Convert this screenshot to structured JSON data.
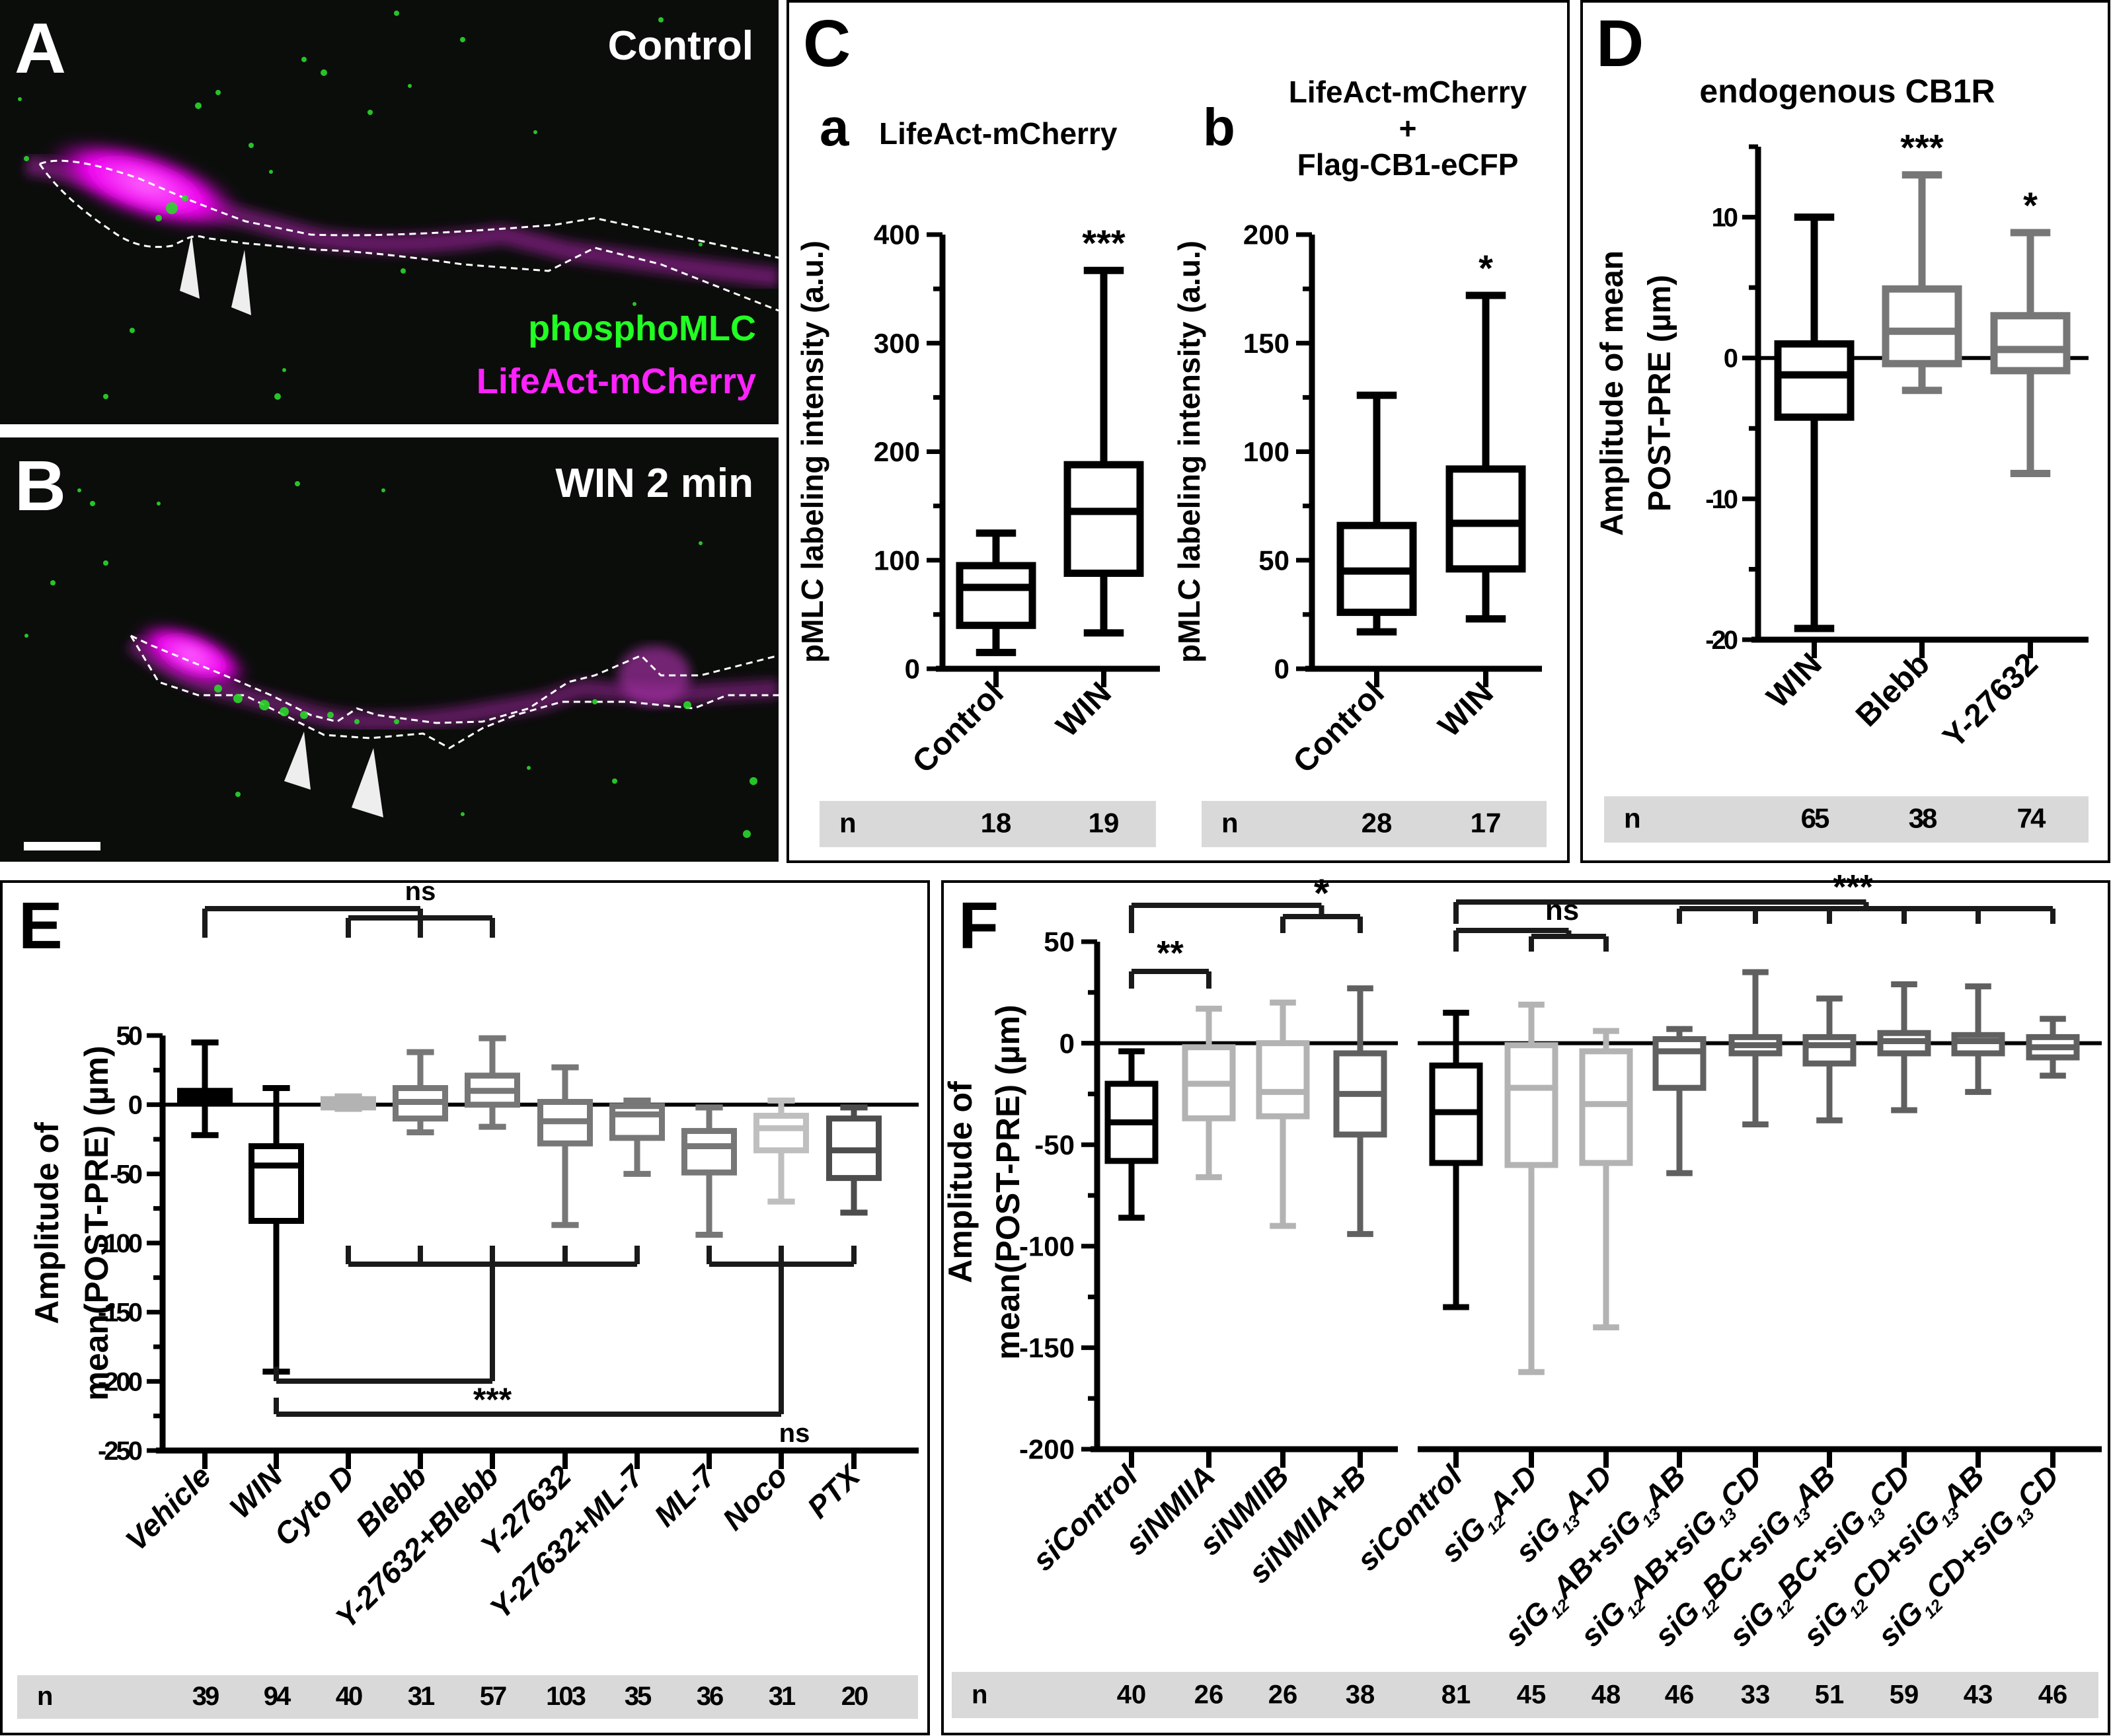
{
  "panels": {
    "A": {
      "letter": "A",
      "condition": "Control",
      "channel_green": "phosphoMLC",
      "channel_magenta": "LifeAct-mCherry"
    },
    "B": {
      "letter": "B",
      "condition": "WIN 2 min"
    },
    "C": {
      "letter": "C",
      "sub_a": "a",
      "sub_b": "b"
    },
    "D": {
      "letter": "D"
    },
    "E": {
      "letter": "E"
    },
    "F": {
      "letter": "F"
    }
  },
  "colors": {
    "green": "#22ff22",
    "magenta": "#ff22ff",
    "black": "#000000",
    "gray_mid": "#777777",
    "gray_light": "#bbbbbb",
    "gray_dark": "#555555",
    "n_band": "#d9d9d9"
  },
  "chart_data": [
    {
      "id": "Ca",
      "type": "box",
      "title": "LifeAct-mCherry",
      "ylabel": "pMLC labeling intensity (a.u.)",
      "ylim": [
        0,
        400
      ],
      "yticks": [
        0,
        100,
        200,
        300,
        400
      ],
      "categories": [
        "Control",
        "WIN"
      ],
      "series": [
        {
          "name": "Control",
          "min": 15,
          "q1": 40,
          "median": 75,
          "q3": 95,
          "max": 125,
          "color": "#000000",
          "n": 18,
          "sig": ""
        },
        {
          "name": "WIN",
          "min": 33,
          "q1": 88,
          "median": 145,
          "q3": 188,
          "max": 367,
          "color": "#000000",
          "n": 19,
          "sig": "***"
        }
      ],
      "n_label": "n"
    },
    {
      "id": "Cb",
      "type": "box",
      "title": [
        "LifeAct-mCherry",
        "+",
        "Flag-CB1-eCFP"
      ],
      "ylabel": "pMLC labeling intensity (a.u.)",
      "ylim": [
        0,
        200
      ],
      "yticks": [
        0,
        50,
        100,
        150,
        200
      ],
      "categories": [
        "Control",
        "WIN"
      ],
      "series": [
        {
          "name": "Control",
          "min": 17,
          "q1": 26,
          "median": 45,
          "q3": 66,
          "max": 126,
          "color": "#000000",
          "n": 28,
          "sig": ""
        },
        {
          "name": "WIN",
          "min": 23,
          "q1": 46,
          "median": 67,
          "q3": 92,
          "max": 172,
          "color": "#000000",
          "n": 17,
          "sig": "*"
        }
      ],
      "n_label": "n"
    },
    {
      "id": "D",
      "type": "box",
      "title": "endogenous CB1R",
      "ylabel": [
        "Amplitude of mean",
        "POST-PRE (µm)"
      ],
      "ylim": [
        -20,
        15
      ],
      "yticks": [
        -20,
        -10,
        0,
        10
      ],
      "categories": [
        "WIN",
        "Blebb",
        "Y-27632"
      ],
      "series": [
        {
          "name": "WIN",
          "min": -19.2,
          "q1": -4.2,
          "median": -1.2,
          "q3": 1.0,
          "max": 10.0,
          "color": "#000000",
          "n": 65,
          "sig": ""
        },
        {
          "name": "Blebb",
          "min": -2.3,
          "q1": -0.4,
          "median": 1.9,
          "q3": 4.9,
          "max": 13.0,
          "color": "#777777",
          "n": 38,
          "sig": "***"
        },
        {
          "name": "Y-27632",
          "min": -8.2,
          "q1": -0.9,
          "median": 0.6,
          "q3": 3.0,
          "max": 8.9,
          "color": "#777777",
          "n": 74,
          "sig": "*"
        }
      ],
      "n_label": "n"
    },
    {
      "id": "E",
      "type": "box",
      "title": "",
      "ylabel": [
        "Amplitude of",
        "mean(POST-PRE) (µm)"
      ],
      "ylim": [
        -250,
        50
      ],
      "yticks": [
        -250,
        -200,
        -150,
        -100,
        -50,
        0,
        50
      ],
      "categories": [
        "Vehicle",
        "WIN",
        "Cyto D",
        "Blebb",
        "Y-27632+Blebb",
        "Y-27632",
        "Y-27632+ML-7",
        "ML-7",
        "Noco",
        "PTX"
      ],
      "series": [
        {
          "name": "Vehicle",
          "min": -22,
          "q1": 2,
          "median": 6,
          "q3": 10,
          "max": 45,
          "color": "#000000",
          "n": 39
        },
        {
          "name": "WIN",
          "min": -193,
          "q1": -84,
          "median": -44,
          "q3": -30,
          "max": 12,
          "color": "#000000",
          "n": 94
        },
        {
          "name": "Cyto D",
          "min": -3,
          "q1": -2,
          "median": 2,
          "q3": 4,
          "max": 6,
          "color": "#b3b3b3",
          "n": 40
        },
        {
          "name": "Blebb",
          "min": -20,
          "q1": -10,
          "median": 2,
          "q3": 12,
          "max": 38,
          "color": "#777777",
          "n": 31
        },
        {
          "name": "Y-27632+Blebb",
          "min": -16,
          "q1": 0,
          "median": 10,
          "q3": 21,
          "max": 48,
          "color": "#777777",
          "n": 57
        },
        {
          "name": "Y-27632",
          "min": -87,
          "q1": -28,
          "median": -12,
          "q3": 2,
          "max": 27,
          "color": "#777777",
          "n": 103
        },
        {
          "name": "Y-27632+ML-7",
          "min": -50,
          "q1": -24,
          "median": -7,
          "q3": -1,
          "max": 3,
          "color": "#777777",
          "n": 35
        },
        {
          "name": "ML-7",
          "min": -94,
          "q1": -49,
          "median": -30,
          "q3": -19,
          "max": -2,
          "color": "#777777",
          "n": 36
        },
        {
          "name": "Noco",
          "min": -70,
          "q1": -33,
          "median": -17,
          "q3": -8,
          "max": 3,
          "color": "#bfbfbf",
          "n": 31
        },
        {
          "name": "PTX",
          "min": -78,
          "q1": -53,
          "median": -33,
          "q3": -10,
          "max": -2,
          "color": "#4d4d4d",
          "n": 20
        }
      ],
      "annotations": [
        {
          "text": "ns",
          "type": "bracket-top",
          "from": [
            0
          ],
          "to": [
            2,
            4
          ]
        },
        {
          "text": "***",
          "type": "bracket-bottom",
          "from": [
            1
          ],
          "to": [
            2,
            3,
            4,
            5,
            6
          ]
        },
        {
          "text": "ns",
          "type": "bracket-bottom",
          "from": [
            1
          ],
          "to": [
            7,
            8,
            9
          ]
        }
      ],
      "n_label": "n"
    },
    {
      "id": "F",
      "type": "box",
      "title": "",
      "ylabel": [
        "Amplitude of",
        "mean(POST-PRE) (µm)"
      ],
      "ylim": [
        -200,
        50
      ],
      "yticks": [
        -200,
        -150,
        -100,
        -50,
        0,
        50
      ],
      "categories": [
        "siControl",
        "siNMIIA",
        "siNMIIB",
        "siNMIIA+B",
        "siControl",
        "siG12A-D",
        "siG13A-D",
        "siG12AB+siG13AB",
        "siG12AB+siG13CD",
        "siG12BC+siG13AB",
        "siG12BC+siG13CD",
        "siG12CD+siG13AB",
        "siG12CD+siG13CD"
      ],
      "category_parts": [
        [
          "siControl"
        ],
        [
          "siNMIIA"
        ],
        [
          "siNMIIB"
        ],
        [
          "siNMIIA+B"
        ],
        [
          "siControl"
        ],
        [
          "siG",
          "12",
          "A-D"
        ],
        [
          "siG",
          "13",
          "A-D"
        ],
        [
          "siG",
          "12",
          "AB+siG",
          "13",
          "AB"
        ],
        [
          "siG",
          "12",
          "AB+siG",
          "13",
          "CD"
        ],
        [
          "siG",
          "12",
          "BC+siG",
          "13",
          "AB"
        ],
        [
          "siG",
          "12",
          "BC+siG",
          "13",
          "CD"
        ],
        [
          "siG",
          "12",
          "CD+siG",
          "13",
          "AB"
        ],
        [
          "siG",
          "12",
          "CD+siG",
          "13",
          "CD"
        ]
      ],
      "series": [
        {
          "name": "siControl",
          "min": -86,
          "q1": -58,
          "median": -39,
          "q3": -20,
          "max": -4,
          "color": "#000000",
          "n": 40
        },
        {
          "name": "siNMIIA",
          "min": -66,
          "q1": -37,
          "median": -20,
          "q3": -2,
          "max": 17,
          "color": "#b3b3b3",
          "n": 26
        },
        {
          "name": "siNMIIB",
          "min": -90,
          "q1": -36,
          "median": -24,
          "q3": 0,
          "max": 20,
          "color": "#b3b3b3",
          "n": 26
        },
        {
          "name": "siNMIIA+B",
          "min": -94,
          "q1": -45,
          "median": -25,
          "q3": -5,
          "max": 27,
          "color": "#606060",
          "n": 38
        },
        {
          "name": "siControl",
          "min": -130,
          "q1": -59,
          "median": -34,
          "q3": -11,
          "max": 15,
          "color": "#000000",
          "n": 81
        },
        {
          "name": "siG12A-D",
          "min": -162,
          "q1": -60,
          "median": -22,
          "q3": -1,
          "max": 19,
          "color": "#b3b3b3",
          "n": 45
        },
        {
          "name": "siG13A-D",
          "min": -140,
          "q1": -59,
          "median": -30,
          "q3": -4,
          "max": 6,
          "color": "#b3b3b3",
          "n": 48
        },
        {
          "name": "siG12AB+siG13AB",
          "min": -64,
          "q1": -22,
          "median": -4,
          "q3": 2,
          "max": 7,
          "color": "#606060",
          "n": 46
        },
        {
          "name": "siG12AB+siG13CD",
          "min": -40,
          "q1": -5,
          "median": -1,
          "q3": 3,
          "max": 35,
          "color": "#606060",
          "n": 33
        },
        {
          "name": "siG12BC+siG13AB",
          "min": -38,
          "q1": -10,
          "median": -1,
          "q3": 3,
          "max": 22,
          "color": "#606060",
          "n": 51
        },
        {
          "name": "siG12BC+siG13CD",
          "min": -33,
          "q1": -5,
          "median": 1,
          "q3": 5,
          "max": 29,
          "color": "#606060",
          "n": 59
        },
        {
          "name": "siG12CD+siG13AB",
          "min": -24,
          "q1": -5,
          "median": 1,
          "q3": 4,
          "max": 28,
          "color": "#606060",
          "n": 43
        },
        {
          "name": "siG12CD+siG13CD",
          "min": -16,
          "q1": -7,
          "median": -2,
          "q3": 3,
          "max": 12,
          "color": "#606060",
          "n": 46
        }
      ],
      "annotations": [
        {
          "text": "**",
          "type": "bracket-top",
          "from": [
            0
          ],
          "to": [
            1
          ]
        },
        {
          "text": "*",
          "type": "bracket-top",
          "from": [
            0
          ],
          "to": [
            2,
            3
          ]
        },
        {
          "text": "ns",
          "type": "bracket-top",
          "from": [
            4
          ],
          "to": [
            5,
            6
          ]
        },
        {
          "text": "***",
          "type": "bracket-top",
          "from": [
            4
          ],
          "to": [
            7,
            8,
            9,
            10,
            11,
            12
          ]
        }
      ],
      "n_label": "n"
    }
  ]
}
